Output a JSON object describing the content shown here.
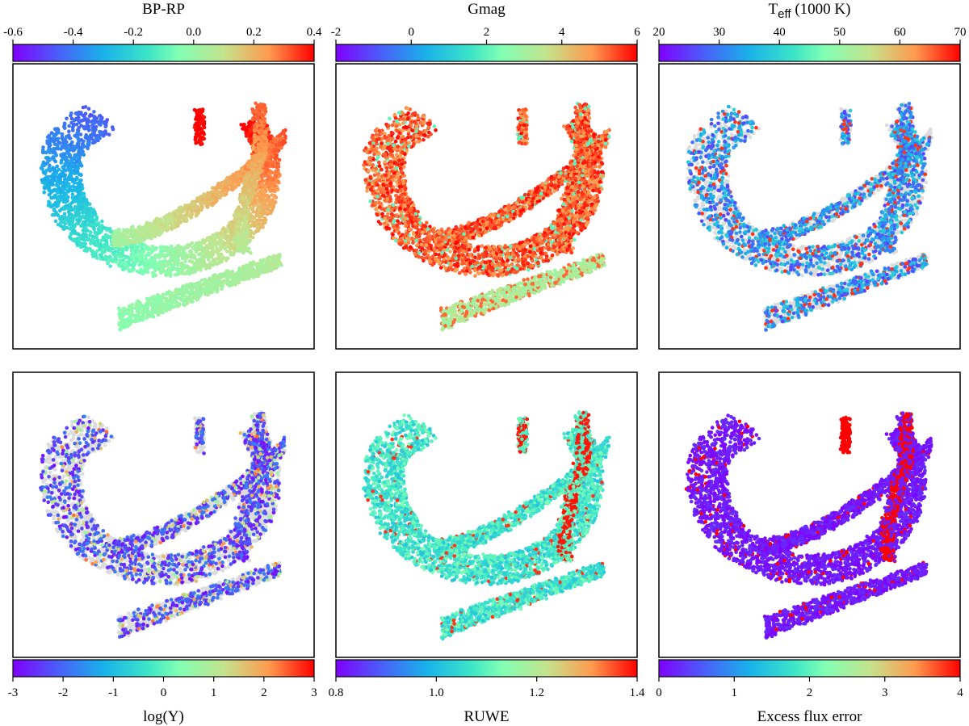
{
  "chart_data": [
    {
      "type": "scatter",
      "title": "BP-RP",
      "colorbar": {
        "position": "top",
        "range": [
          -0.6,
          0.4
        ],
        "ticks": [
          -0.6,
          -0.4,
          -0.2,
          0.0,
          0.2,
          0.4
        ],
        "tick_labels": [
          "-0.6",
          "-0.4",
          "-0.2",
          "0.0",
          "0.2",
          "0.4"
        ]
      },
      "mode": "gradient",
      "points_per_panel": "approx. several thousand"
    },
    {
      "type": "scatter",
      "title": "Gmag",
      "colorbar": {
        "position": "top",
        "range": [
          -2,
          6
        ],
        "ticks": [
          -2,
          0,
          2,
          4,
          6
        ],
        "tick_labels": [
          "-2",
          "0",
          "2",
          "4",
          "6"
        ]
      },
      "mode": "dense-red-orange"
    },
    {
      "type": "scatter",
      "title_main": "T",
      "title_sub": "eff",
      "title_rest": " (1000 K)",
      "colorbar": {
        "position": "top",
        "range": [
          20,
          70
        ],
        "ticks": [
          20,
          30,
          40,
          50,
          60,
          70
        ],
        "tick_labels": [
          "20",
          "30",
          "40",
          "50",
          "60",
          "70"
        ]
      },
      "mode": "sparse-blue"
    },
    {
      "type": "scatter",
      "title": "log(Y)",
      "colorbar": {
        "position": "bottom",
        "range": [
          -3,
          3
        ],
        "ticks": [
          -3,
          -2,
          -1,
          0,
          1,
          2,
          3
        ],
        "tick_labels": [
          "-3",
          "-2",
          "-1",
          "0",
          "1",
          "2",
          "3"
        ]
      },
      "mode": "sparse-purple"
    },
    {
      "type": "scatter",
      "title": "RUWE",
      "colorbar": {
        "position": "bottom",
        "range": [
          0.8,
          1.4
        ],
        "ticks": [
          0.8,
          1.0,
          1.2,
          1.4
        ],
        "tick_labels": [
          "0.8",
          "1.0",
          "1.2",
          "1.4"
        ]
      },
      "mode": "dense-cyan"
    },
    {
      "type": "scatter",
      "title": "Excess flux error",
      "colorbar": {
        "position": "bottom",
        "range": [
          0,
          4
        ],
        "ticks": [
          0,
          1,
          2,
          3,
          4
        ],
        "tick_labels": [
          "0",
          "1",
          "2",
          "3",
          "4"
        ]
      },
      "mode": "dense-purple"
    }
  ],
  "colors": {
    "missing": "#dcdcdc",
    "frame": "#000000"
  }
}
